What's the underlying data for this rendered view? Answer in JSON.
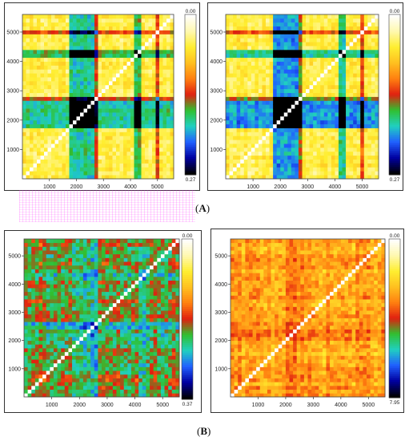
{
  "captions": {
    "a": "A",
    "b": "B"
  },
  "palette": [
    "#ffffff",
    "#fff8b0",
    "#ffee30",
    "#ffc020",
    "#ff8010",
    "#e02010",
    "#30c030",
    "#20d0c0",
    "#2060ff",
    "#0000a0",
    "#000000"
  ],
  "chart_data": [
    {
      "type": "heatmap",
      "id": "A-left",
      "xlim": [
        0,
        5600
      ],
      "ylim": [
        0,
        5600
      ],
      "xticks": [
        1000,
        2000,
        3000,
        4000,
        5000
      ],
      "yticks": [
        1000,
        2000,
        3000,
        4000,
        5000
      ],
      "colorbar": {
        "max_label": "0.00",
        "min_label": "0.27",
        "min": 0.0,
        "max": 0.27
      },
      "base_value": 0.05,
      "bands": [
        [
          1700,
          2600,
          0.13
        ],
        [
          4100,
          4400,
          0.12
        ],
        [
          2650,
          2800,
          0.09
        ],
        [
          5000,
          5100,
          0.08
        ]
      ],
      "noise": 0.03
    },
    {
      "type": "heatmap",
      "id": "A-right",
      "xlim": [
        0,
        5600
      ],
      "ylim": [
        0,
        5600
      ],
      "xticks": [
        1000,
        2000,
        3000,
        4000,
        5000
      ],
      "yticks": [
        1000,
        2000,
        3000,
        4000,
        5000
      ],
      "colorbar": {
        "max_label": "0.00",
        "min_label": "0.27",
        "min": 0.0,
        "max": 0.27
      },
      "base_value": 0.05,
      "bands": [
        [
          1750,
          2650,
          0.15
        ],
        [
          4150,
          4450,
          0.13
        ],
        [
          2650,
          2850,
          0.1
        ],
        [
          5000,
          5100,
          0.08
        ]
      ],
      "noise": 0.03
    },
    {
      "type": "heatmap",
      "id": "B-left",
      "xlim": [
        0,
        5600
      ],
      "ylim": [
        0,
        5600
      ],
      "xticks": [
        1000,
        2000,
        3000,
        4000,
        5000
      ],
      "yticks": [
        1000,
        2000,
        3000,
        4000,
        5000
      ],
      "colorbar": {
        "max_label": "0.00",
        "min_label": "0.37",
        "min": 0.0,
        "max": 0.37
      },
      "base_value": 0.2,
      "bands": [
        [
          1800,
          2600,
          0.04
        ],
        [
          4200,
          4500,
          0.03
        ]
      ],
      "noise": 0.07
    },
    {
      "type": "heatmap",
      "id": "B-right",
      "xlim": [
        0,
        5600
      ],
      "ylim": [
        0,
        5600
      ],
      "xticks": [
        1000,
        2000,
        3000,
        4000,
        5000
      ],
      "yticks": [
        1000,
        2000,
        3000,
        4000,
        5000
      ],
      "colorbar": {
        "max_label": "0.00",
        "min_label": "7.95",
        "min": 0.0,
        "max": 7.95
      },
      "base_value": 2.7,
      "bands": [
        [
          2000,
          2400,
          0.6
        ]
      ],
      "noise": 1.2
    }
  ]
}
